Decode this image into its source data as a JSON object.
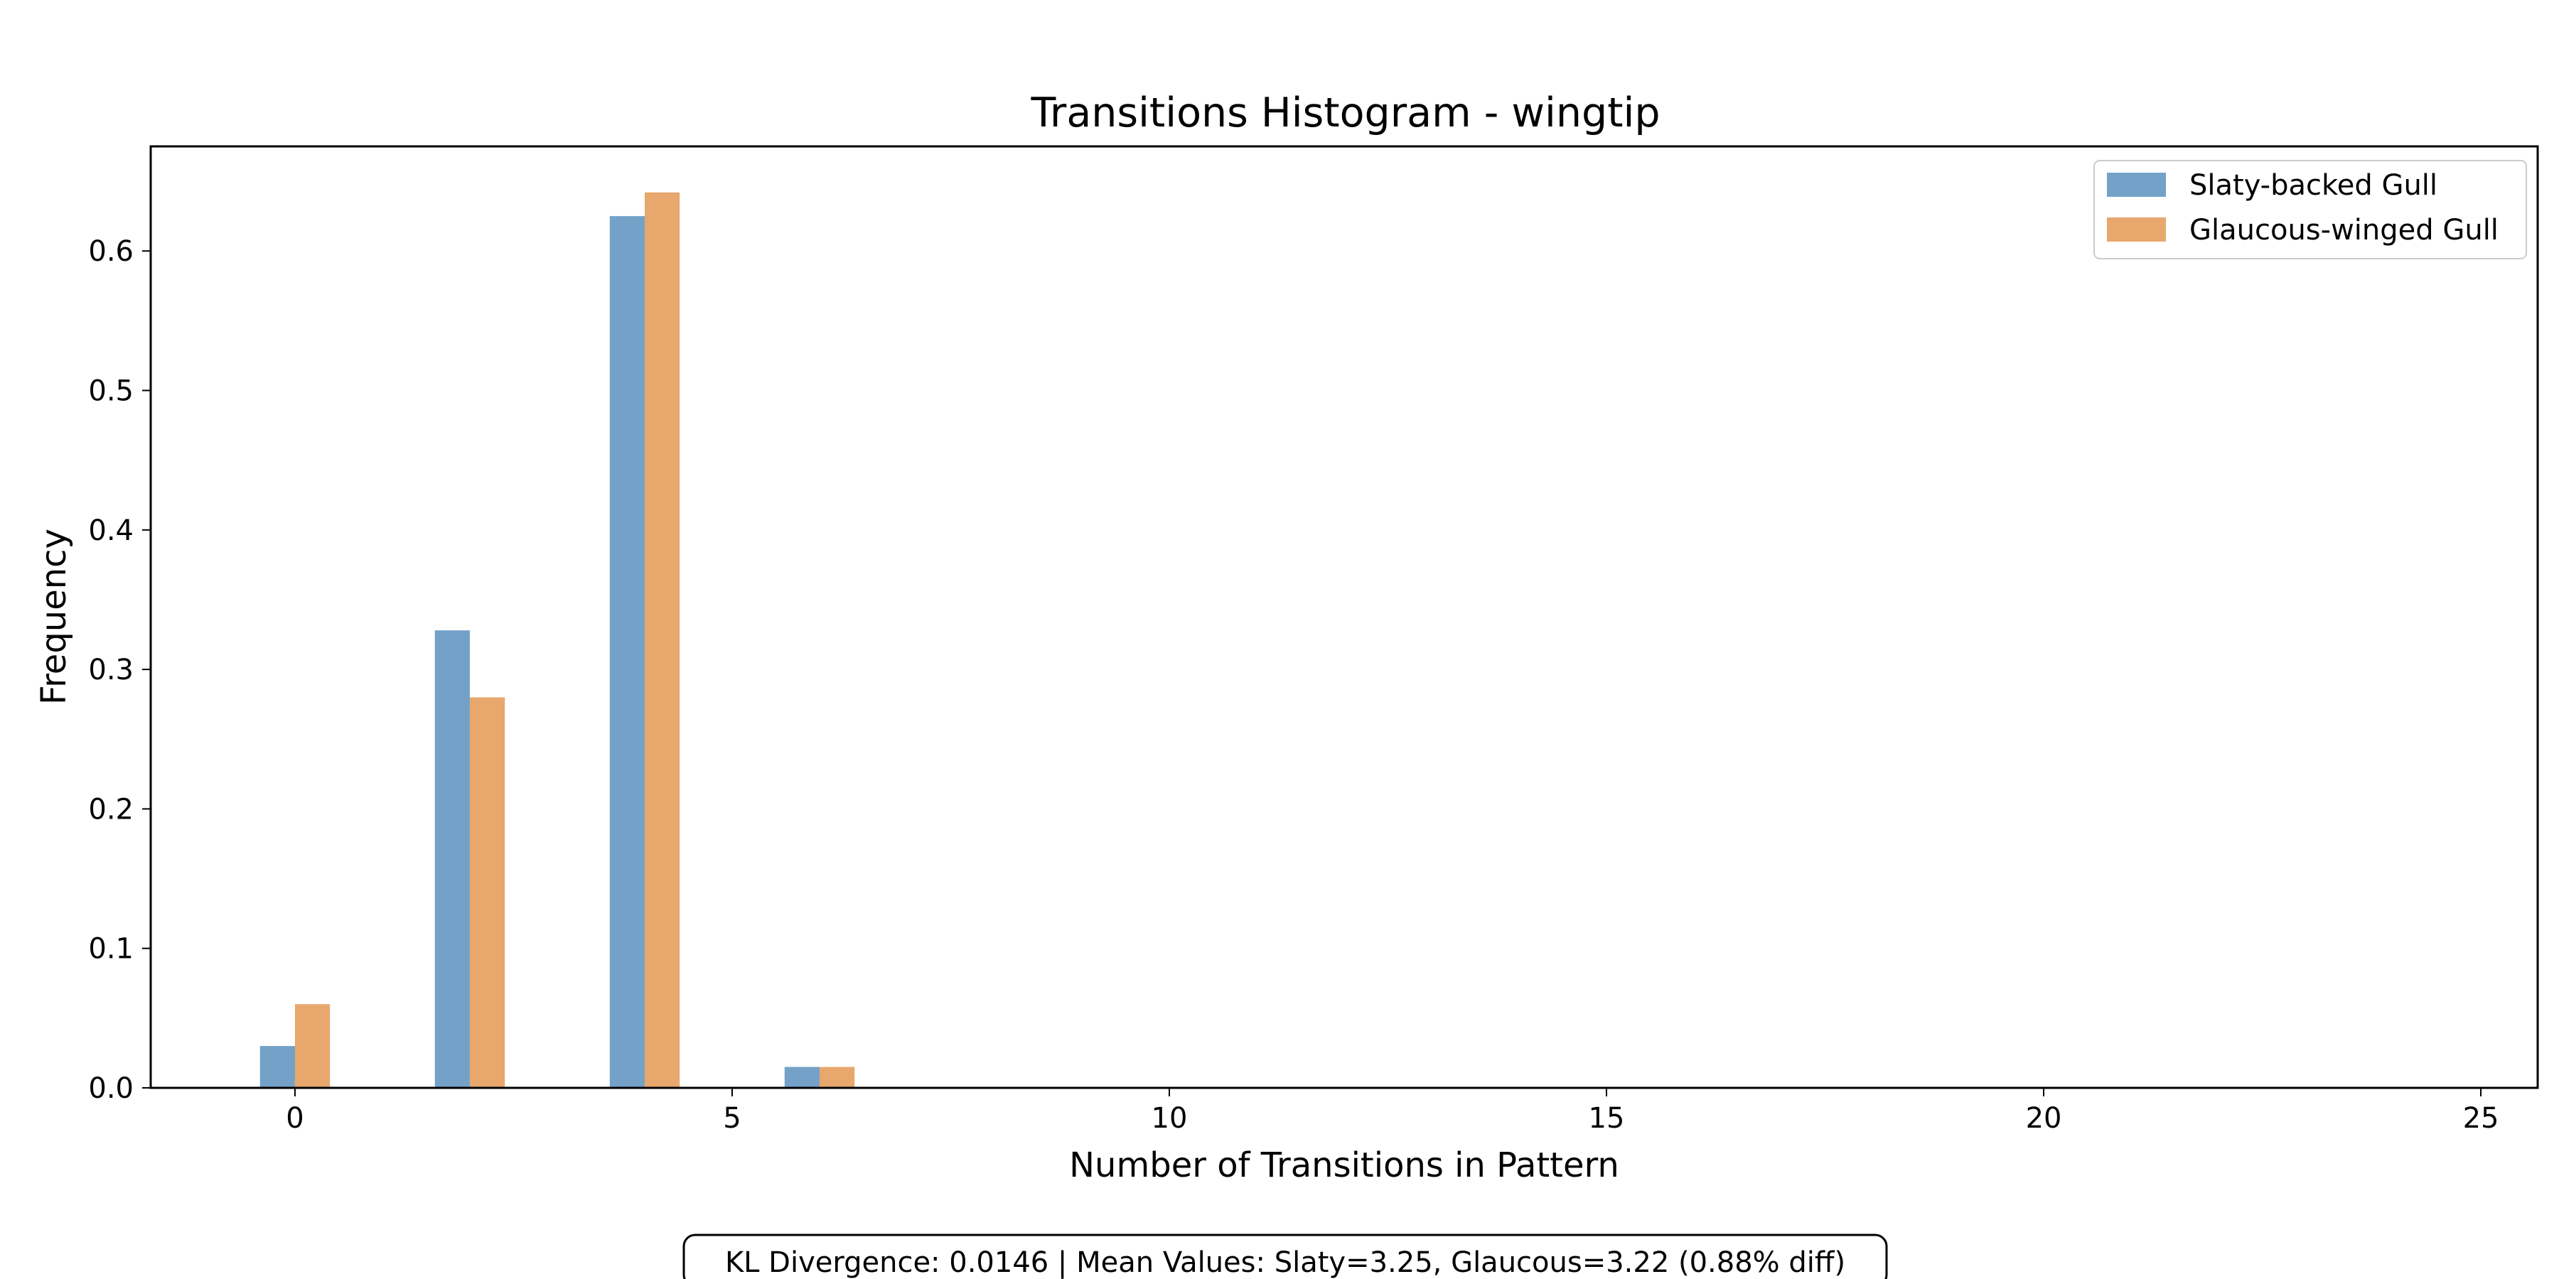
{
  "chart_data": {
    "type": "bar",
    "title": "Transitions Histogram - wingtip",
    "xlabel": "Number of Transitions in Pattern",
    "ylabel": "Frequency",
    "xlim": [
      -1.65,
      25.65
    ],
    "ylim": [
      0,
      0.675
    ],
    "x_ticks": [
      0,
      5,
      10,
      15,
      20,
      25
    ],
    "y_ticks": [
      0.0,
      0.1,
      0.2,
      0.3,
      0.4,
      0.5,
      0.6
    ],
    "y_tick_labels": [
      "0.0",
      "0.1",
      "0.2",
      "0.3",
      "0.4",
      "0.5",
      "0.6"
    ],
    "x": [
      0,
      2,
      4,
      6
    ],
    "bar_width": 0.4,
    "series": [
      {
        "name": "Slaty-backed Gull",
        "color": "#4682b4",
        "opacity": 0.75,
        "values": [
          0.03,
          0.328,
          0.625,
          0.015
        ]
      },
      {
        "name": "Glaucous-winged Gull",
        "color": "#e08a3c",
        "opacity": 0.75,
        "values": [
          0.06,
          0.28,
          0.642,
          0.015
        ]
      }
    ],
    "legend_position": "top-right",
    "grid": false,
    "annotation": "KL Divergence: 0.0146 | Mean Values: Slaty=3.25, Glaucous=3.22 (0.88% diff)"
  }
}
